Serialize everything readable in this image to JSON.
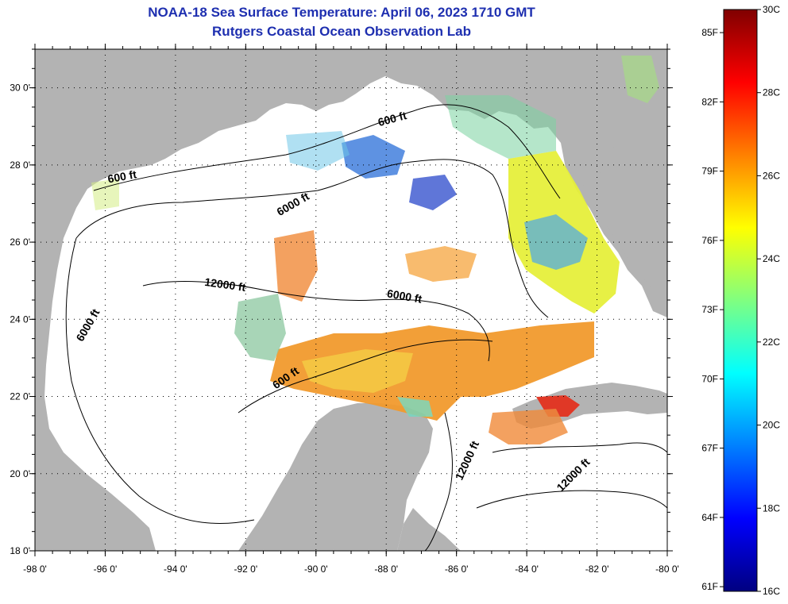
{
  "title": "NOAA-18 Sea Surface Temperature:  April 06, 2023 1710 GMT",
  "subtitle": "Rutgers Coastal Ocean Observation Lab",
  "map": {
    "lon_min": -98,
    "lon_max": -80,
    "lat_min": 18,
    "lat_max": 31,
    "lon_ticks": [
      {
        "value": -98,
        "label": "-98 0'"
      },
      {
        "value": -96,
        "label": "-96 0'"
      },
      {
        "value": -94,
        "label": "-94 0'"
      },
      {
        "value": -92,
        "label": "-92 0'"
      },
      {
        "value": -90,
        "label": "-90 0'"
      },
      {
        "value": -88,
        "label": "-88 0'"
      },
      {
        "value": -86,
        "label": "-86 0'"
      },
      {
        "value": -84,
        "label": "-84 0'"
      },
      {
        "value": -82,
        "label": "-82 0'"
      },
      {
        "value": -80,
        "label": "-80 0'"
      }
    ],
    "lat_ticks": [
      {
        "value": 30,
        "label": "30 0'"
      },
      {
        "value": 28,
        "label": "28 0'"
      },
      {
        "value": 26,
        "label": "26 0'"
      },
      {
        "value": 24,
        "label": "24 0'"
      },
      {
        "value": 22,
        "label": "22 0'"
      },
      {
        "value": 20,
        "label": "20 0'"
      },
      {
        "value": 18,
        "label": "18 0'"
      }
    ],
    "contour_labels": [
      {
        "text": "600 ft",
        "lon": -87.8,
        "lat": 29.1,
        "rotate": -15
      },
      {
        "text": "600 ft",
        "lon": -95.5,
        "lat": 27.6,
        "rotate": -10
      },
      {
        "text": "6000 ft",
        "lon": -90.6,
        "lat": 26.9,
        "rotate": -30
      },
      {
        "text": "12000 ft",
        "lon": -92.6,
        "lat": 24.8,
        "rotate": 8
      },
      {
        "text": "6000 ft",
        "lon": -87.5,
        "lat": 24.5,
        "rotate": 10
      },
      {
        "text": "6000 ft",
        "lon": -96.4,
        "lat": 23.8,
        "rotate": -60
      },
      {
        "text": "600 ft",
        "lon": -90.8,
        "lat": 22.4,
        "rotate": -35
      },
      {
        "text": "12000 ft",
        "lon": -85.6,
        "lat": 20.3,
        "rotate": -65
      },
      {
        "text": "12000 ft",
        "lon": -82.6,
        "lat": 19.9,
        "rotate": -45
      }
    ],
    "colors": {
      "land": "#b3b3b3",
      "water": "#ffffff",
      "grid": "#000000"
    }
  },
  "colorbar": {
    "celsius_ticks": [
      {
        "value": 30,
        "label": "30C"
      },
      {
        "value": 28,
        "label": "28C"
      },
      {
        "value": 26,
        "label": "26C"
      },
      {
        "value": 24,
        "label": "24C"
      },
      {
        "value": 22,
        "label": "22C"
      },
      {
        "value": 20,
        "label": "20C"
      },
      {
        "value": 18,
        "label": "18C"
      },
      {
        "value": 16,
        "label": "16C"
      }
    ],
    "fahrenheit_ticks": [
      {
        "value": 85,
        "label": "85F"
      },
      {
        "value": 82,
        "label": "82F"
      },
      {
        "value": 79,
        "label": "79F"
      },
      {
        "value": 76,
        "label": "76F"
      },
      {
        "value": 73,
        "label": "73F"
      },
      {
        "value": 70,
        "label": "70F"
      },
      {
        "value": 67,
        "label": "67F"
      },
      {
        "value": 64,
        "label": "64F"
      },
      {
        "value": 61,
        "label": "61F"
      }
    ],
    "min_c": 16,
    "max_c": 30,
    "colors": [
      "#000080",
      "#0000ff",
      "#0080ff",
      "#00ffff",
      "#80ff80",
      "#ffff00",
      "#ff8000",
      "#ff0000",
      "#800000"
    ]
  }
}
